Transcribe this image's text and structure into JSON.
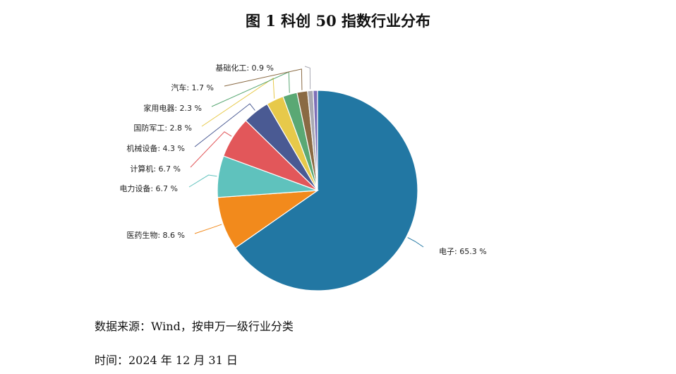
{
  "title": "图 1  科创 50 指数行业分布",
  "source_note": "数据来源：Wind，按申万一级行业分类",
  "date_note": "时间：2024 年 12 月 31 日",
  "chart_data": {
    "type": "pie",
    "title": "图 1  科创 50 指数行业分布",
    "unit": "%",
    "slices": [
      {
        "name": "电子",
        "value": 65.3,
        "color": "#2277a3"
      },
      {
        "name": "医药生物",
        "value": 8.6,
        "color": "#f28a1c"
      },
      {
        "name": "电力设备",
        "value": 6.7,
        "color": "#5fc2bd"
      },
      {
        "name": "计算机",
        "value": 6.7,
        "color": "#e2575a"
      },
      {
        "name": "机械设备",
        "value": 4.3,
        "color": "#4a5a93"
      },
      {
        "name": "国防军工",
        "value": 2.8,
        "color": "#e7c94a"
      },
      {
        "name": "家用电器",
        "value": 2.3,
        "color": "#5aa874"
      },
      {
        "name": "汽车",
        "value": 1.7,
        "color": "#8a6a44"
      },
      {
        "name": "基础化工",
        "value": 0.9,
        "color": "#a9a9b3"
      },
      {
        "name": "",
        "value": 0.7,
        "color": "#7d6fb8"
      }
    ],
    "labels": [
      {
        "slice": 0,
        "text": "电子: 65.3 %"
      },
      {
        "slice": 1,
        "text": "医药生物: 8.6 %"
      },
      {
        "slice": 2,
        "text": "电力设备: 6.7 %"
      },
      {
        "slice": 3,
        "text": "计算机: 6.7 %"
      },
      {
        "slice": 4,
        "text": "机械设备: 4.3 %"
      },
      {
        "slice": 5,
        "text": "国防军工: 2.8 %"
      },
      {
        "slice": 6,
        "text": "家用电器: 2.3 %"
      },
      {
        "slice": 7,
        "text": "汽车: 1.7 %"
      },
      {
        "slice": 8,
        "text": "基础化工: 0.9 %"
      }
    ]
  }
}
